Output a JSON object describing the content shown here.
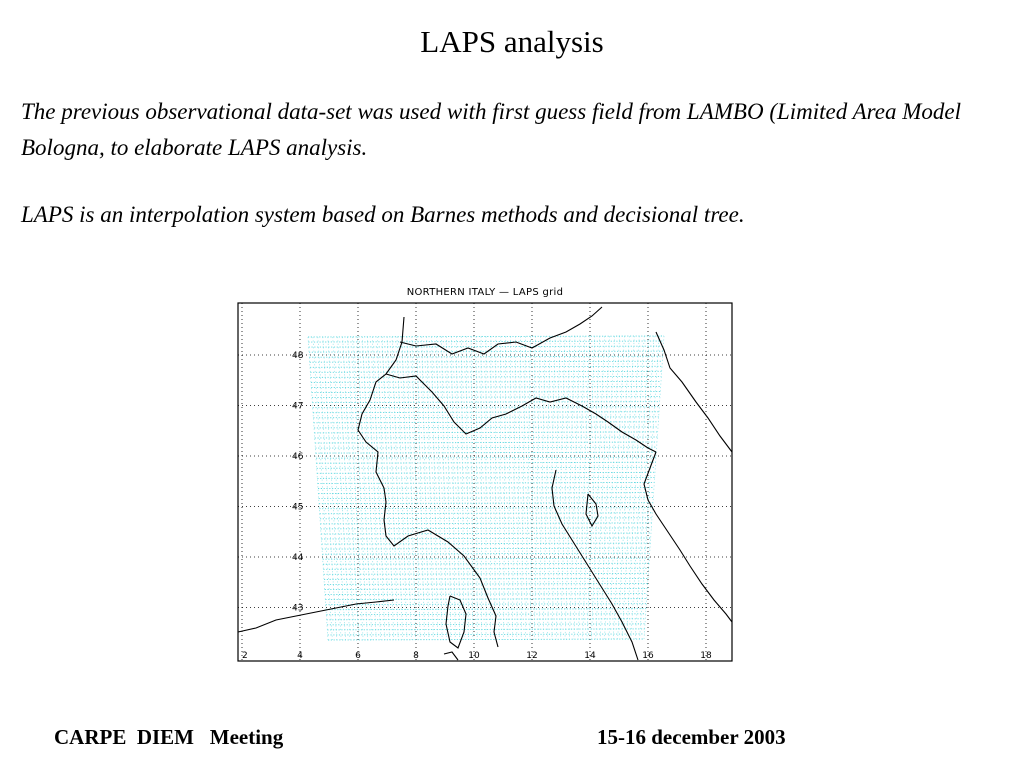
{
  "slide": {
    "title": "LAPS analysis",
    "paragraphs": [
      "The previous observational data-set was used with first guess field from LAMBO (Limited Area Model Bologna, to elaborate LAPS analysis.",
      "LAPS is an interpolation system based on Barnes methods and decisional tree."
    ],
    "footer_left": "CARPE  DIEM   Meeting",
    "footer_right": "15-16 december 2003"
  },
  "figure": {
    "title": "NORTHERN ITALY — LAPS grid",
    "lon_ticks": [
      "2",
      "4",
      "6",
      "8",
      "10",
      "12",
      "14",
      "16",
      "18"
    ],
    "lat_ticks": [
      "43",
      "44",
      "45",
      "46",
      "47",
      "48"
    ],
    "grid_color": "#5ed8e0",
    "coast_color": "#000000"
  }
}
